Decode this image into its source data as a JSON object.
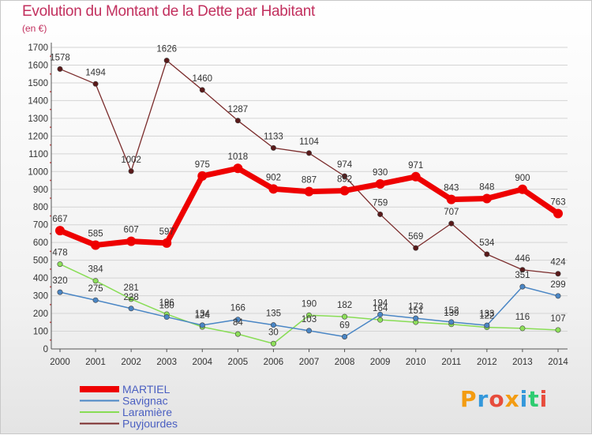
{
  "title": "Evolution du Montant de la Dette par Habitant",
  "subtitle": "(en €)",
  "logo": {
    "text": "Proxiti",
    "colors": [
      "#f39c12",
      "#3498db",
      "#e74c3c",
      "#f39c12",
      "#3498db",
      "#2ecc71",
      "#e74c3c"
    ]
  },
  "chart_data": {
    "type": "line",
    "title": "Evolution du Montant de la Dette par Habitant",
    "ylabel": "(en €)",
    "xlabel": "",
    "x": [
      "2000",
      "2001",
      "2002",
      "2003",
      "2004",
      "2005",
      "2006",
      "2007",
      "2008",
      "2009",
      "2010",
      "2011",
      "2012",
      "2013",
      "2014"
    ],
    "ylim": [
      0,
      1700
    ],
    "yticks": [
      "0",
      "100",
      "200",
      "300",
      "400",
      "500",
      "600",
      "700",
      "800",
      "900",
      "1000",
      "1100",
      "1200",
      "1300",
      "1400",
      "1500",
      "1600",
      "1700"
    ],
    "grid": "horizontal",
    "legend_position": "bottom-left",
    "series": [
      {
        "name": "MARTIEL",
        "color": "#ee0000",
        "values": [
          667,
          585,
          607,
          597,
          975,
          1018,
          902,
          887,
          892,
          930,
          971,
          843,
          848,
          900,
          763
        ],
        "labels": [
          "667",
          "585",
          "607",
          "597",
          "975",
          "1018",
          "902",
          "887",
          "892",
          "930",
          "971",
          "843",
          "848",
          "900",
          "763"
        ]
      },
      {
        "name": "Savignac",
        "color": "#4a86c5",
        "values": [
          320,
          275,
          228,
          180,
          134,
          166,
          135,
          103,
          69,
          194,
          173,
          152,
          133,
          351,
          299
        ],
        "labels": [
          "320",
          "275",
          "228",
          "180",
          "134",
          "166",
          "135",
          "103",
          "69",
          "194",
          "173",
          "152",
          "133",
          "351",
          "299"
        ]
      },
      {
        "name": "Laramière",
        "color": "#88dd55",
        "values": [
          478,
          384,
          281,
          196,
          124,
          84,
          30,
          190,
          182,
          164,
          151,
          139,
          122,
          116,
          107
        ],
        "labels": [
          "478",
          "384",
          "281",
          "196",
          "124",
          "84",
          "30",
          "190",
          "182",
          "164",
          "151",
          "139",
          "122",
          "116",
          "107"
        ]
      },
      {
        "name": "Puyjourdes",
        "color": "#7a2b2b",
        "values": [
          1578,
          1494,
          1002,
          1626,
          1460,
          1287,
          1133,
          1104,
          974,
          759,
          569,
          707,
          534,
          446,
          424
        ],
        "labels": [
          "1578",
          "1494",
          "1002",
          "1626",
          "1460",
          "1287",
          "1133",
          "1104",
          "974",
          "759",
          "569",
          "707",
          "534",
          "446",
          "424"
        ]
      }
    ]
  }
}
